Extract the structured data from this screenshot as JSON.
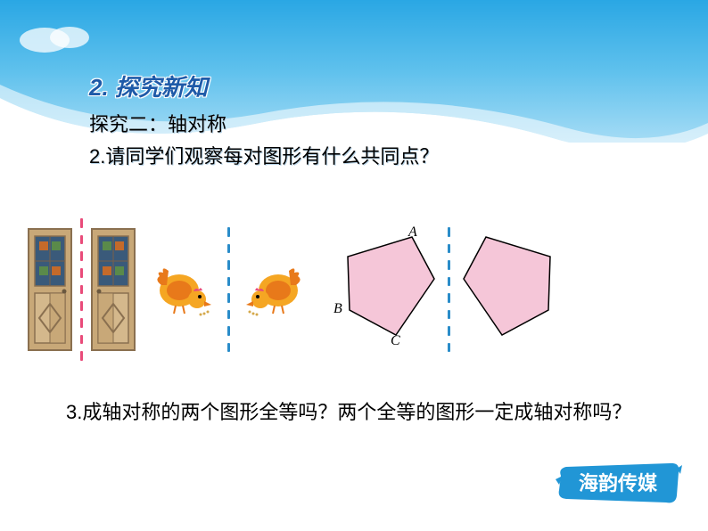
{
  "section_title": "2. 探究新知",
  "subtitle": "探究二：轴对称",
  "question2": "2.请同学们观察每对图形有什么共同点？",
  "question3": "　　3.成轴对称的两个图形全等吗？两个全等的图形一定成轴对称吗？",
  "labels": {
    "A": "A",
    "B": "B",
    "C": "C"
  },
  "logo_text": "海韵传媒",
  "colors": {
    "sky_top": "#2aa7e4",
    "sky_mid": "#5fc1ed",
    "sky_bottom": "#a6dcf5",
    "section_title": "#1e5aa8",
    "dash_red": "#e94b7a",
    "dash_blue": "#2a8cc9",
    "door_frame": "#b89968",
    "door_panel": "#c8a878",
    "door_glass": "#3a5a7a",
    "chicken_body": "#f5a623",
    "chicken_accent": "#e8791a",
    "chicken_comb": "#e94b7a",
    "pentagon_fill": "#f5c6d8",
    "pentagon_stroke": "#000000",
    "logo_bg": "#2196d6",
    "logo_text_color": "#ffffff"
  },
  "dash_counts": {
    "red": 9,
    "blue1": 8,
    "blue2": 8
  }
}
